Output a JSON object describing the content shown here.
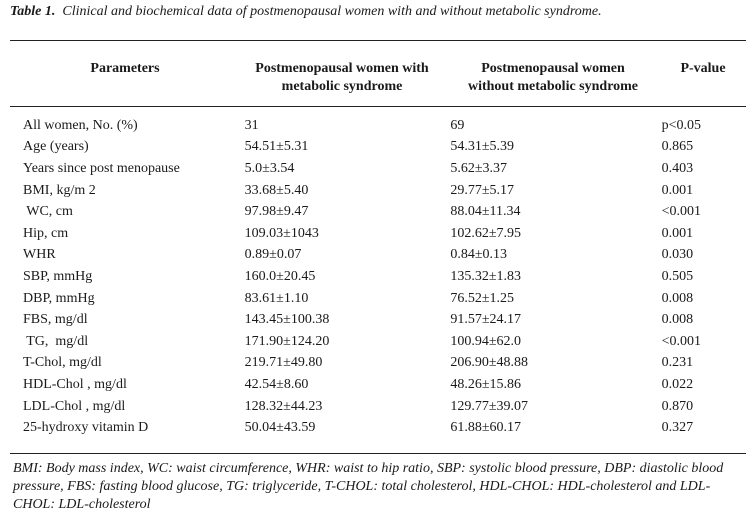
{
  "caption": {
    "label": "Table 1.",
    "text": "Clinical and biochemical data of postmenopausal women with and without metabolic syndrome."
  },
  "headers": {
    "parameters": "Parameters",
    "with_ms_line1": "Postmenopausal women with",
    "with_ms_line2": "metabolic syndrome",
    "without_ms_line1": "Postmenopausal women",
    "without_ms_line2": "without metabolic syndrome",
    "pvalue": "P-value"
  },
  "rows": [
    {
      "param": "All women, No. (%)",
      "with_ms": "31",
      "without_ms": "69",
      "p": "p<0.05"
    },
    {
      "param": "Age (years)",
      "with_ms": "54.51±5.31",
      "without_ms": "54.31±5.39",
      "p": "0.865"
    },
    {
      "param": "Years since post menopause",
      "with_ms": "5.0±3.54",
      "without_ms": "5.62±3.37",
      "p": "0.403"
    },
    {
      "param": "BMI, kg/m 2",
      "with_ms": "33.68±5.40",
      "without_ms": "29.77±5.17",
      "p": "0.001"
    },
    {
      "param": " WC, cm",
      "with_ms": "97.98±9.47",
      "without_ms": "88.04±11.34",
      "p": "<0.001"
    },
    {
      "param": "Hip, cm",
      "with_ms": "109.03±1043",
      "without_ms": "102.62±7.95",
      "p": "0.001"
    },
    {
      "param": "WHR",
      "with_ms": "0.89±0.07",
      "without_ms": "0.84±0.13",
      "p": "0.030"
    },
    {
      "param": "SBP, mmHg",
      "with_ms": "160.0±20.45",
      "without_ms": "135.32±1.83",
      "p": "0.505"
    },
    {
      "param": "DBP, mmHg",
      "with_ms": "83.61±1.10",
      "without_ms": "76.52±1.25",
      "p": "0.008"
    },
    {
      "param": "FBS, mg/dl",
      "with_ms": "143.45±100.38",
      "without_ms": "91.57±24.17",
      "p": "0.008"
    },
    {
      "param": " TG,  mg/dl",
      "with_ms": "171.90±124.20",
      "without_ms": "100.94±62.0",
      "p": "<0.001"
    },
    {
      "param": "T-Chol, mg/dl",
      "with_ms": "219.71±49.80",
      "without_ms": "206.90±48.88",
      "p": "0.231"
    },
    {
      "param": "HDL-Chol , mg/dl",
      "with_ms": "42.54±8.60",
      "without_ms": "48.26±15.86",
      "p": "0.022"
    },
    {
      "param": "LDL-Chol , mg/dl",
      "with_ms": "128.32±44.23",
      "without_ms": "129.77±39.07",
      "p": "0.870"
    },
    {
      "param": "25-hydroxy vitamin D",
      "with_ms": "50.04±43.59",
      "without_ms": "61.88±60.17",
      "p": "0.327"
    }
  ],
  "footnote": "BMI: Body mass index, WC: waist circumference, WHR: waist to hip ratio, SBP: systolic blood pressure, DBP: diastolic blood pressure, FBS: fasting blood glucose, TG: triglyceride, T-CHOL: total cholesterol, HDL-CHOL: HDL-cholesterol and LDL-CHOL: LDL-cholesterol"
}
